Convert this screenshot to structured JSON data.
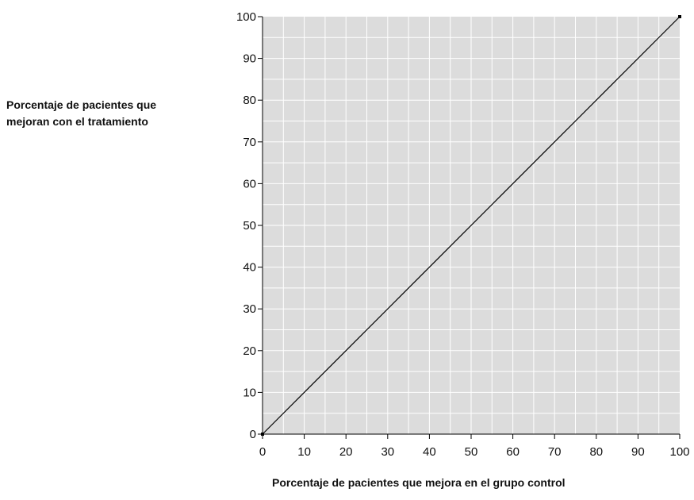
{
  "chart_data": {
    "type": "line",
    "title": "",
    "xlabel": "Porcentaje de pacientes que mejora en el grupo control",
    "ylabel_lines": [
      "Porcentaje de pacientes que",
      "mejoran con el tratamiento"
    ],
    "xlim": [
      0,
      100
    ],
    "ylim": [
      0,
      100
    ],
    "x_ticks": [
      0,
      10,
      20,
      30,
      40,
      50,
      60,
      70,
      80,
      90,
      100
    ],
    "y_ticks": [
      0,
      10,
      20,
      30,
      40,
      50,
      60,
      70,
      80,
      90,
      100
    ],
    "grid": true,
    "minor_grid_step": 5,
    "series": [
      {
        "x": [
          0,
          100
        ],
        "y": [
          0,
          100
        ],
        "color": "#000000"
      }
    ],
    "colors": {
      "plot_background": "#dcdcdc",
      "grid": "#ffffff",
      "line": "#000000"
    }
  }
}
